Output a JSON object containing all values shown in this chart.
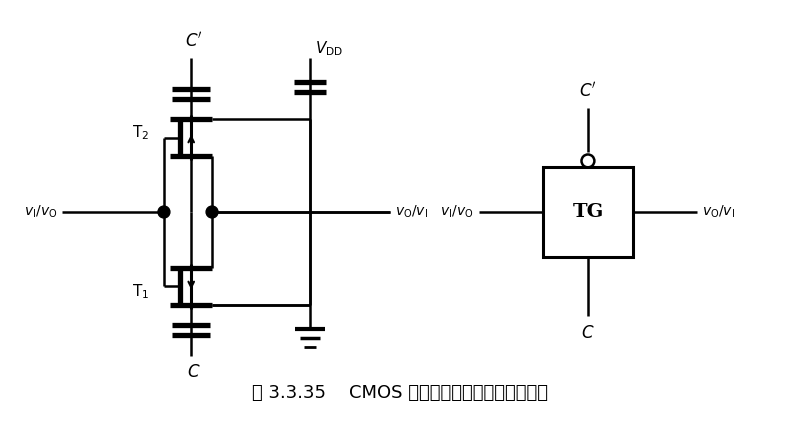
{
  "bg_color": "#ffffff",
  "line_color": "#000000",
  "title": "图 3.3.35    CMOS 传输门的电路结构和逻辑符号",
  "title_fontsize": 13,
  "fig_width": 7.99,
  "fig_height": 4.24
}
